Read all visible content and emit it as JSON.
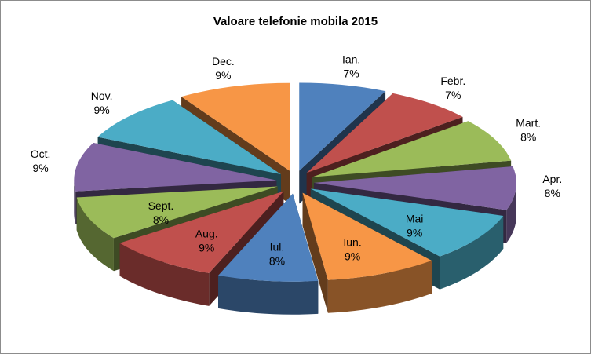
{
  "chart_data": {
    "type": "pie",
    "title": "Valoare telefonie mobila 2015",
    "exploded": true,
    "three_d": true,
    "slices": [
      {
        "label": "Ian.",
        "value": 7,
        "value_label": "7%",
        "color": "#4f81bd"
      },
      {
        "label": "Febr.",
        "value": 7,
        "value_label": "7%",
        "color": "#c0504d"
      },
      {
        "label": "Mart.",
        "value": 8,
        "value_label": "8%",
        "color": "#9bbb59"
      },
      {
        "label": "Apr.",
        "value": 8,
        "value_label": "8%",
        "color": "#8064a2"
      },
      {
        "label": "Mai",
        "value": 9,
        "value_label": "9%",
        "color": "#4bacc6"
      },
      {
        "label": "Iun.",
        "value": 9,
        "value_label": "9%",
        "color": "#f79646"
      },
      {
        "label": "Iul.",
        "value": 8,
        "value_label": "8%",
        "color": "#4f81bd"
      },
      {
        "label": "Aug.",
        "value": 9,
        "value_label": "9%",
        "color": "#c0504d"
      },
      {
        "label": "Sept.",
        "value": 8,
        "value_label": "8%",
        "color": "#9bbb59"
      },
      {
        "label": "Oct.",
        "value": 9,
        "value_label": "9%",
        "color": "#8064a2"
      },
      {
        "label": "Nov.",
        "value": 9,
        "value_label": "9%",
        "color": "#4bacc6"
      },
      {
        "label": "Dec.",
        "value": 9,
        "value_label": "9%",
        "color": "#f79646"
      }
    ]
  }
}
